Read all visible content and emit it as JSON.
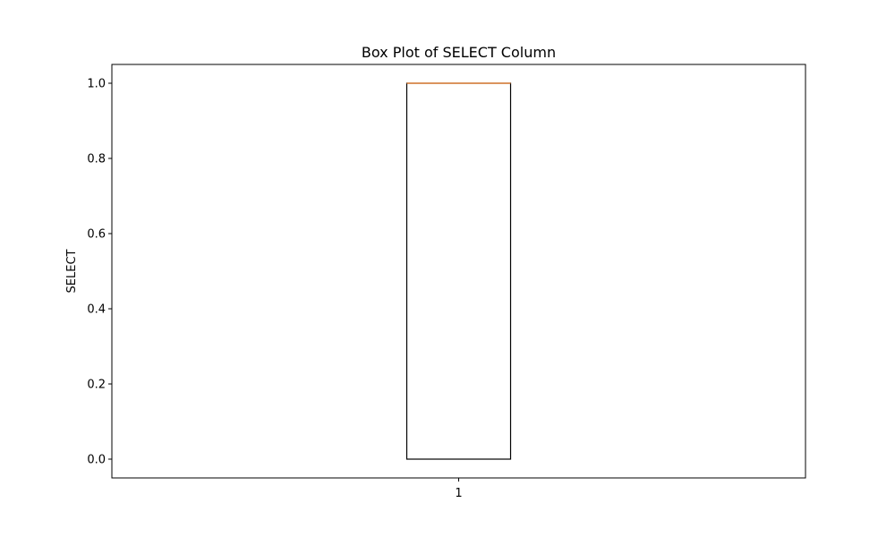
{
  "chart_data": {
    "type": "box",
    "title": "Box Plot of SELECT Column",
    "xlabel": "",
    "ylabel": "SELECT",
    "categories": [
      "1"
    ],
    "boxes": [
      {
        "category": "1",
        "whisker_low": 0.0,
        "q1": 0.0,
        "median": 1.0,
        "q3": 1.0,
        "whisker_high": 1.0
      }
    ],
    "yticks": [
      0.0,
      0.2,
      0.4,
      0.6,
      0.8,
      1.0
    ],
    "ytick_labels": [
      "0.0",
      "0.2",
      "0.4",
      "0.6",
      "0.8",
      "1.0"
    ],
    "xticks": [
      "1"
    ],
    "ylim": [
      -0.05,
      1.05
    ],
    "grid": false,
    "colors": {
      "box_edge": "#000000",
      "median": "#e0823a",
      "axes": "#000000"
    }
  }
}
